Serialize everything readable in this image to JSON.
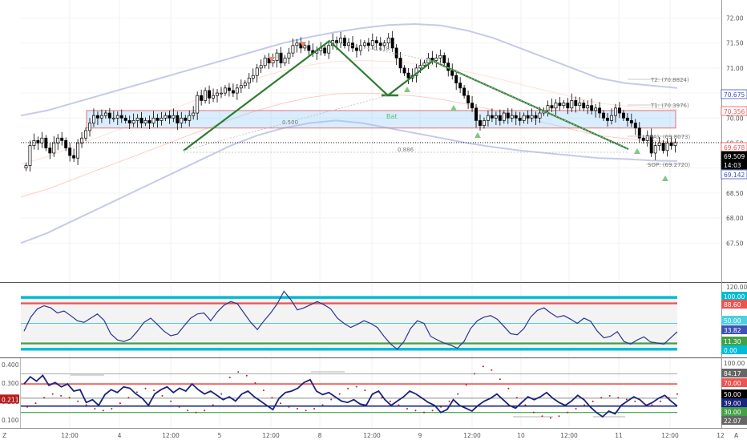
{
  "chart_data": [
    {
      "type": "candlestick",
      "panel": "price",
      "ylim": [
        67.2,
        72.2
      ],
      "y_ticks": [
        "72.00",
        "71.50",
        "71.00",
        "70.50",
        "70.00",
        "69.50",
        "69.00",
        "68.50",
        "68.00",
        "67.50"
      ],
      "tags": [
        {
          "label": "70.675",
          "value": 70.675,
          "color": "#3f51b5"
        },
        {
          "label": "70.356",
          "value": 70.356,
          "color": "#ef5350"
        },
        {
          "label": "69.678",
          "value": 69.678,
          "color": "#ef5350"
        },
        {
          "label": "69.509",
          "value": 69.509,
          "color": "#000000"
        },
        {
          "label": "14:03",
          "value": 69.36,
          "color": "#000000"
        },
        {
          "label": "69.142",
          "value": 69.142,
          "color": "#3f51b5"
        }
      ],
      "pattern": {
        "name": "Bat",
        "labels": [
          "0.618",
          "0.500",
          "0.886"
        ],
        "targets": [
          "T2: (70.8824)",
          "T1: (70.3976)",
          "(A): (69.8073)",
          "SOP: (69.2720)"
        ]
      },
      "ohlc_close": [
        69.05,
        69.45,
        69.55,
        69.5,
        69.6,
        69.4,
        69.3,
        69.5,
        69.6,
        69.55,
        69.4,
        69.25,
        69.2,
        69.5,
        69.6,
        69.75,
        69.9,
        70.05,
        70.0,
        70.05,
        70.1,
        70.0,
        70.0,
        70.05,
        70.0,
        69.95,
        69.9,
        69.95,
        70.0,
        69.9,
        69.95,
        69.9,
        70.0,
        69.95,
        70.0,
        70.05,
        70.0,
        70.05,
        69.9,
        70.0,
        69.95,
        70.05,
        70.1,
        70.45,
        70.35,
        70.55,
        70.4,
        70.45,
        70.5,
        70.5,
        70.6,
        70.55,
        70.5,
        70.6,
        70.65,
        70.7,
        70.8,
        70.85,
        71.0,
        71.05,
        71.2,
        71.1,
        71.15,
        71.3,
        71.1,
        71.2,
        71.3,
        71.45,
        71.5,
        71.4,
        71.45,
        71.35,
        71.3,
        71.35,
        71.4,
        71.3,
        71.45,
        71.55,
        71.5,
        71.6,
        71.45,
        71.5,
        71.4,
        71.35,
        71.45,
        71.5,
        71.45,
        71.55,
        71.5,
        71.45,
        71.5,
        71.6,
        71.4,
        71.2,
        71.0,
        70.9,
        70.8,
        70.85,
        71.0,
        71.05,
        71.1,
        71.2,
        71.15,
        71.2,
        71.25,
        71.1,
        70.95,
        70.85,
        70.7,
        70.6,
        70.45,
        70.3,
        70.2,
        69.95,
        69.85,
        69.95,
        70.05,
        70.0,
        70.05,
        69.95,
        70.1,
        70.0,
        70.05,
        70.0,
        69.95,
        70.05,
        70.0,
        70.05,
        70.0,
        70.1,
        70.15,
        70.25,
        70.2,
        70.3,
        70.25,
        70.3,
        70.2,
        70.35,
        70.25,
        70.3,
        70.2,
        70.25,
        70.15,
        70.2,
        70.1,
        70.0,
        69.95,
        70.05,
        70.2,
        70.1,
        70.0,
        69.95,
        69.9,
        69.8,
        69.6,
        69.55,
        69.65,
        69.3,
        69.45,
        69.5,
        69.35,
        69.5,
        69.45,
        69.51
      ],
      "bollinger_like_bands": {
        "upper": [
          70.05,
          70.15,
          70.3,
          70.45,
          70.6,
          70.75,
          70.9,
          71.05,
          71.2,
          71.35,
          71.5,
          71.62,
          71.72,
          71.8,
          71.86,
          71.88,
          71.85,
          71.75,
          71.6,
          71.4,
          71.2,
          71.0,
          70.8,
          70.7,
          70.65,
          70.6
        ],
        "lower": [
          67.5,
          67.7,
          67.95,
          68.2,
          68.45,
          68.7,
          68.95,
          69.2,
          69.45,
          69.65,
          69.8,
          69.9,
          69.95,
          69.9,
          69.8,
          69.7,
          69.6,
          69.5,
          69.42,
          69.35,
          69.3,
          69.25,
          69.2,
          69.18,
          69.15,
          69.14
        ]
      }
    },
    {
      "type": "line",
      "panel": "oscillator-1",
      "ylim": [
        -5,
        125
      ],
      "y_ticks": [
        "120.00"
      ],
      "levels": [
        {
          "label": "100.00",
          "value": 100,
          "color": "#00bcd4"
        },
        {
          "label": "88.60",
          "value": 88.6,
          "color": "#ef5350"
        },
        {
          "label": "50.00",
          "value": 50,
          "color": "#4dd0e1"
        },
        {
          "label": "11.30",
          "value": 11.3,
          "color": "#43a047"
        },
        {
          "label": "0.00",
          "value": 0,
          "color": "#00bcd4"
        }
      ],
      "current": {
        "label": "33.82",
        "value": 33.82,
        "color": "#3f51b5"
      },
      "values": [
        35,
        62,
        78,
        84,
        80,
        70,
        74,
        65,
        55,
        52,
        60,
        68,
        56,
        30,
        18,
        15,
        20,
        35,
        52,
        60,
        48,
        35,
        26,
        29,
        45,
        60,
        68,
        70,
        55,
        72,
        85,
        92,
        88,
        70,
        52,
        38,
        55,
        70,
        88,
        112,
        96,
        76,
        80,
        86,
        92,
        86,
        78,
        60,
        50,
        42,
        48,
        55,
        50,
        42,
        25,
        10,
        0,
        15,
        40,
        55,
        50,
        25,
        18,
        12,
        8,
        2,
        15,
        40,
        55,
        62,
        65,
        58,
        44,
        30,
        28,
        40,
        62,
        75,
        80,
        70,
        62,
        65,
        58,
        50,
        60,
        54,
        35,
        22,
        25,
        34,
        15,
        10,
        18,
        24,
        14,
        12,
        10,
        22,
        33.82
      ]
    },
    {
      "type": "line",
      "panel": "oscillator-2",
      "ylim": [
        0.06,
        0.43
      ],
      "y_ticks": [
        "0.400",
        "0.300",
        "0.200",
        "0.100"
      ],
      "left_value_tag": {
        "label": "0.211",
        "value": 0.211,
        "color": "#b71c1c"
      },
      "right_levels": [
        {
          "label": "100.00",
          "value": 100,
          "color": "#555"
        },
        {
          "label": "84.17",
          "value": 84.17,
          "color": "#555"
        },
        {
          "label": "70.00",
          "value": 70,
          "color": "#ef5350"
        },
        {
          "label": "50.00",
          "value": 50,
          "color": "#000000"
        },
        {
          "label": "39.00",
          "value": 39,
          "color": "#1a237e"
        },
        {
          "label": "30.00",
          "value": 30,
          "color": "#43a047"
        },
        {
          "label": "22.07",
          "value": 22.07,
          "color": "#555"
        }
      ],
      "line_values": [
        70,
        80,
        74,
        82,
        68,
        72,
        66,
        70,
        60,
        62,
        44,
        48,
        40,
        55,
        62,
        58,
        66,
        64,
        56,
        50,
        40,
        56,
        62,
        66,
        58,
        64,
        60,
        70,
        62,
        56,
        60,
        54,
        48,
        52,
        46,
        56,
        60,
        52,
        46,
        40,
        34,
        50,
        58,
        60,
        64,
        72,
        76,
        60,
        55,
        58,
        52,
        46,
        44,
        48,
        42,
        40,
        56,
        60,
        48,
        40,
        46,
        52,
        60,
        56,
        50,
        44,
        40,
        30,
        34,
        48,
        40,
        36,
        32,
        40,
        46,
        50,
        56,
        48,
        40,
        36,
        44,
        52,
        48,
        52,
        58,
        50,
        44,
        40,
        46,
        54,
        48,
        38,
        30,
        24,
        32,
        28,
        40,
        46,
        52,
        48,
        40,
        44,
        50,
        54,
        46,
        39
      ],
      "dot_values": [
        0.17,
        0.19,
        0.22,
        0.24,
        0.23,
        0.22,
        0.2,
        0.18,
        0.16,
        0.15,
        0.16,
        0.19,
        0.22,
        0.25,
        0.27,
        0.26,
        0.23,
        0.2,
        0.17,
        0.15,
        0.14,
        0.15,
        0.18,
        0.24,
        0.33,
        0.36,
        0.34,
        0.3,
        0.26,
        0.22,
        0.19,
        0.17,
        0.16,
        0.15,
        0.16,
        0.18,
        0.21,
        0.24,
        0.27,
        0.28,
        0.26,
        0.24,
        0.22,
        0.2,
        0.18,
        0.16,
        0.15,
        0.14,
        0.15,
        0.17,
        0.2,
        0.24,
        0.29,
        0.35,
        0.39,
        0.37,
        0.32,
        0.27,
        0.22,
        0.18,
        0.14,
        0.12,
        0.11,
        0.12,
        0.14,
        0.16,
        0.18,
        0.2,
        0.22,
        0.23,
        0.22,
        0.21,
        0.2,
        0.19,
        0.18,
        0.2,
        0.22,
        0.24
      ]
    }
  ],
  "time_axis": {
    "labels": [
      "12:00",
      "4",
      "12:00",
      "5",
      "12:00",
      "8",
      "12:00",
      "9",
      "12:00",
      "10",
      "12:00",
      "11",
      "12:00",
      "12"
    ],
    "left_marker": "Z",
    "right_marker": "A"
  }
}
